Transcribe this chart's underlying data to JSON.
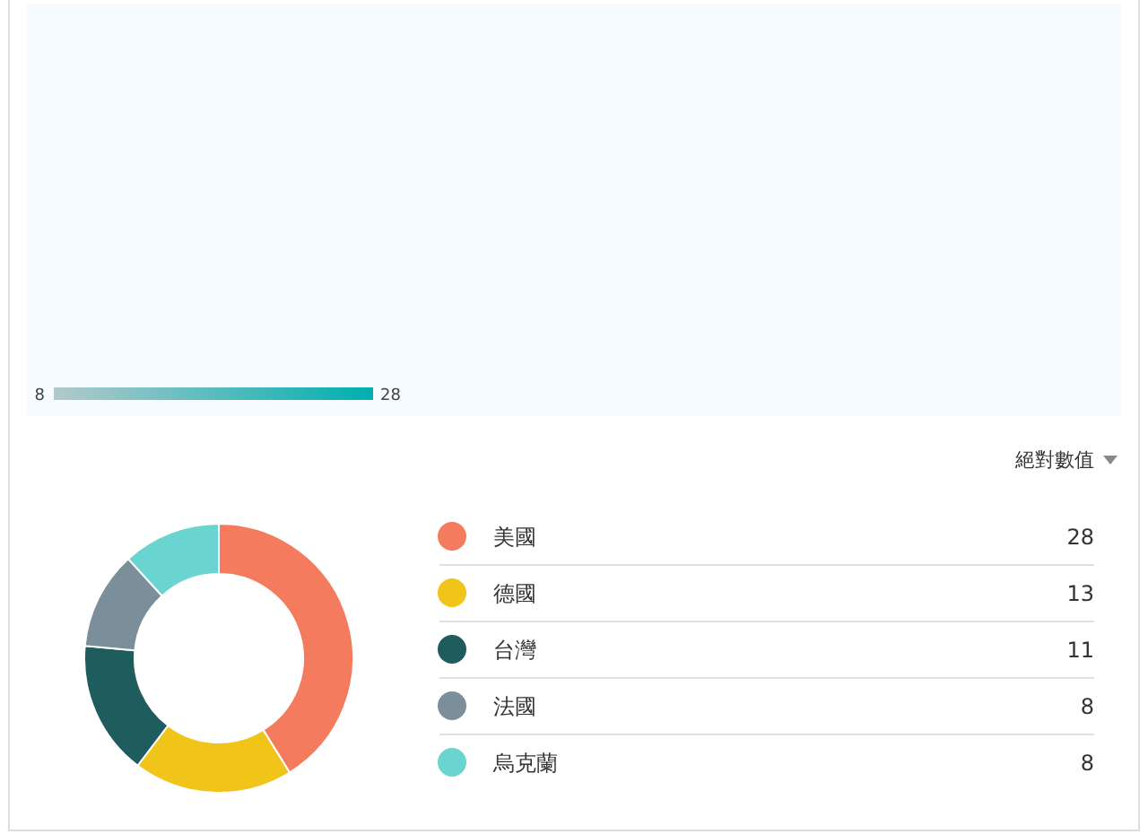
{
  "chart_data": [
    {
      "type": "other",
      "annotations": [
        "8",
        "28"
      ],
      "colors": [
        "#b3c9cc",
        "#00afb0"
      ]
    },
    {
      "type": "donut",
      "annotations": [
        "絕對數值"
      ],
      "categories": [
        "美國",
        "德國",
        "台灣",
        "法國",
        "烏克蘭"
      ],
      "values": [
        28,
        13,
        11,
        8,
        8
      ],
      "colors": [
        "#f47b5e",
        "#f0c419",
        "#1f5c5e",
        "#7a8f9a",
        "#6ad5d0"
      ],
      "legend": "right",
      "value_labels": [
        "28",
        "13",
        "11",
        "8",
        "8"
      ]
    }
  ]
}
